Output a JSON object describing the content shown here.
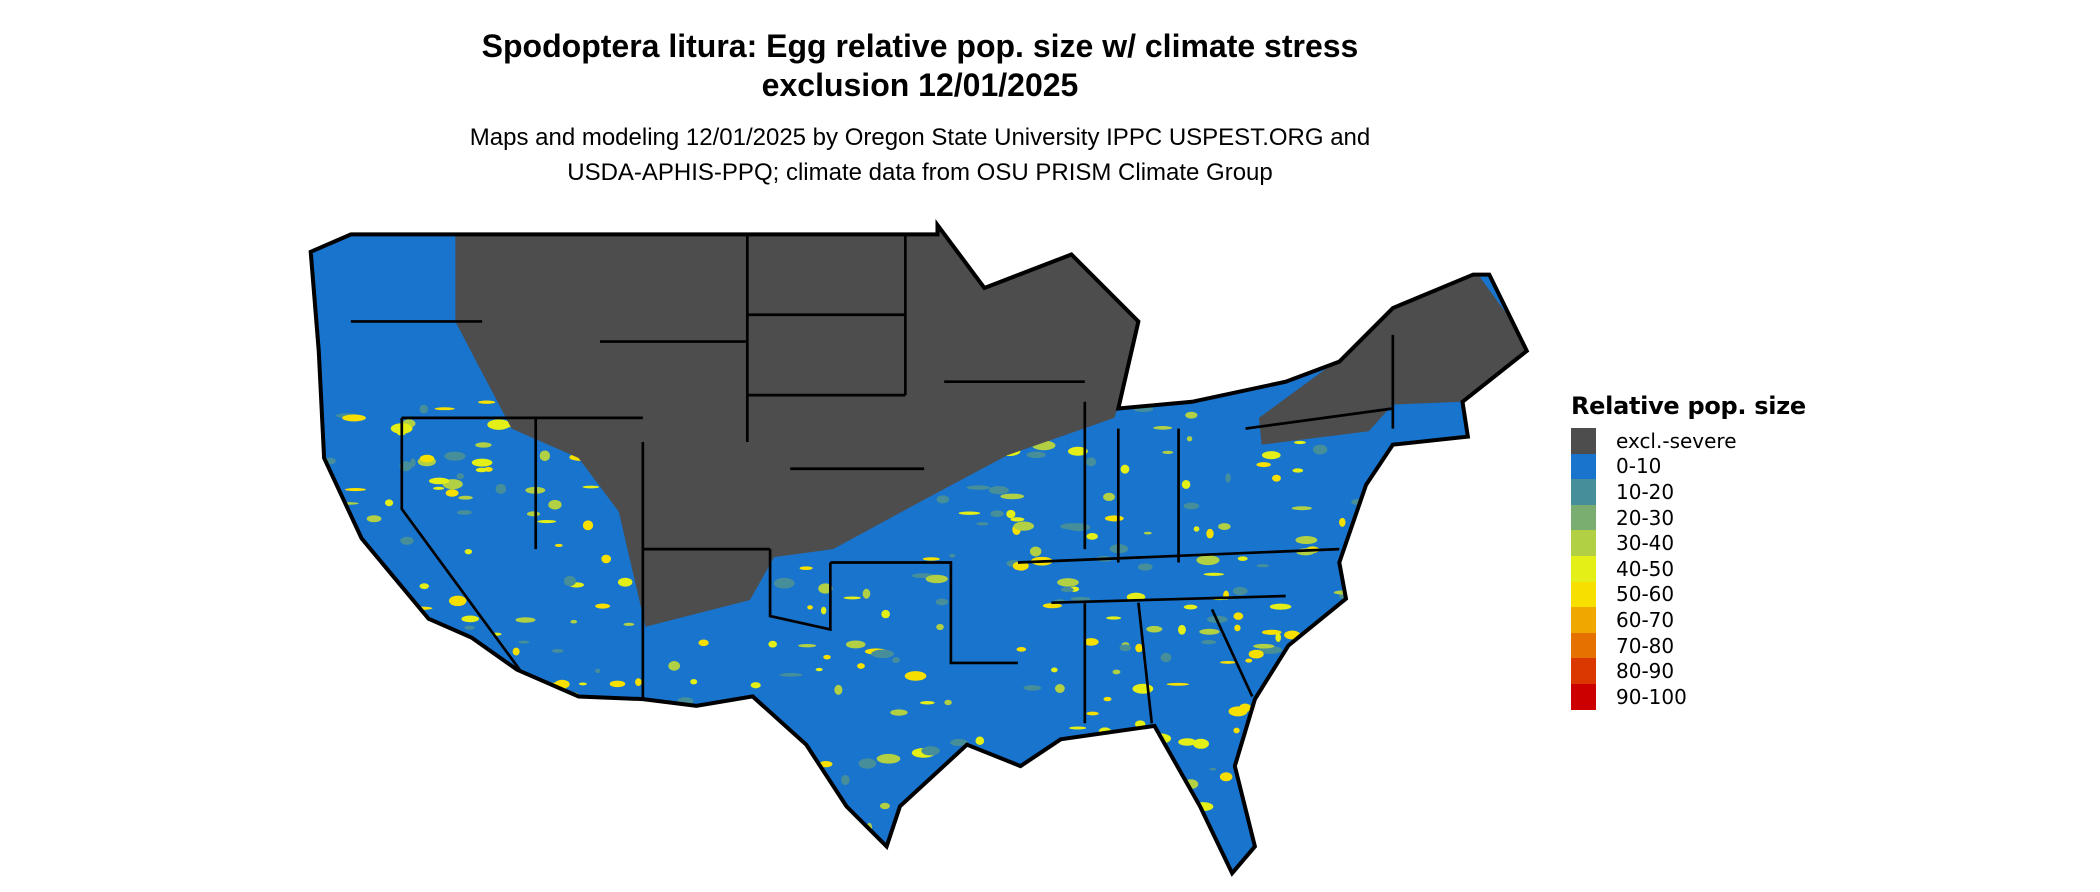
{
  "title_line1": "Spodoptera litura: Egg relative pop. size w/ climate stress",
  "title_line2": "exclusion 12/01/2025",
  "subtitle_line1": "Maps and modeling 12/01/2025 by Oregon State University IPPC USPEST.ORG and",
  "subtitle_line2": "USDA-APHIS-PPQ; climate data from OSU PRISM Climate Group",
  "legend": {
    "title": "Relative pop. size",
    "items": [
      {
        "label": "excl.-severe",
        "color": "#4d4d4d"
      },
      {
        "label": "0-10",
        "color": "#1874cd"
      },
      {
        "label": "10-20",
        "color": "#468e9a"
      },
      {
        "label": "20-30",
        "color": "#7aad70"
      },
      {
        "label": "30-40",
        "color": "#b2d044"
      },
      {
        "label": "40-50",
        "color": "#e3ef17"
      },
      {
        "label": "50-60",
        "color": "#f7e000"
      },
      {
        "label": "60-70",
        "color": "#eea800"
      },
      {
        "label": "70-80",
        "color": "#e57200"
      },
      {
        "label": "80-90",
        "color": "#da3800"
      },
      {
        "label": "90-100",
        "color": "#cd0000"
      }
    ]
  },
  "map": {
    "region": "Contiguous United States",
    "dominant_class": "0-10",
    "north_class": "excl.-severe"
  }
}
